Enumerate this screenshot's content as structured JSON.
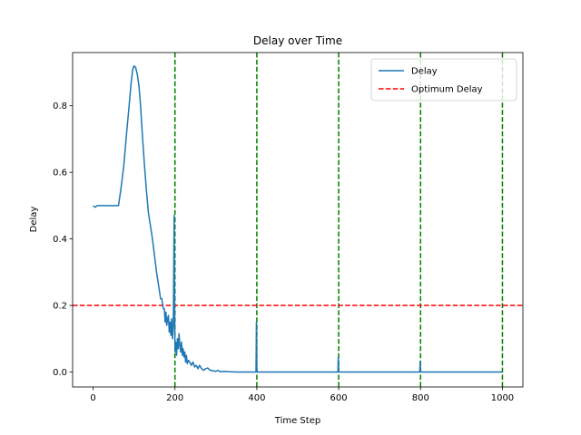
{
  "chart_data": {
    "type": "line",
    "title": "Delay over Time",
    "xlabel": "Time Step",
    "ylabel": "Delay",
    "xlim": [
      -50,
      1050
    ],
    "ylim": [
      -0.045,
      0.96
    ],
    "xticks": [
      0,
      200,
      400,
      600,
      800,
      1000
    ],
    "xtick_labels": [
      "0",
      "200",
      "400",
      "600",
      "800",
      "1000"
    ],
    "yticks": [
      0.0,
      0.2,
      0.4,
      0.6,
      0.8
    ],
    "ytick_labels": [
      "0.0",
      "0.2",
      "0.4",
      "0.6",
      "0.8"
    ],
    "grid": false,
    "legend": {
      "placement": "top-right",
      "entries": [
        {
          "label": "Delay",
          "color": "#1f77b4",
          "style": "solid"
        },
        {
          "label": "Optimum Delay",
          "color": "#ff0000",
          "style": "dashed"
        }
      ]
    },
    "series": [
      {
        "name": "Delay",
        "color": "#1f77b4",
        "x": [
          0,
          5,
          10,
          40,
          62,
          68,
          75,
          82,
          88,
          93,
          97,
          100,
          104,
          108,
          112,
          116,
          120,
          125,
          130,
          135,
          140,
          145,
          150,
          155,
          160,
          165,
          168,
          170,
          172,
          174,
          176,
          178,
          180,
          182,
          184,
          186,
          188,
          190,
          192,
          194,
          196,
          198,
          199,
          200,
          201,
          202,
          204,
          206,
          208,
          210,
          212,
          214,
          216,
          218,
          220,
          222,
          224,
          226,
          228,
          230,
          233,
          236,
          240,
          244,
          248,
          252,
          256,
          260,
          265,
          270,
          275,
          280,
          285,
          290,
          300,
          305,
          310,
          320,
          330,
          350,
          380,
          398,
          399,
          400,
          401,
          402,
          420,
          500,
          598,
          599,
          600,
          601,
          602,
          700,
          798,
          799,
          800,
          801,
          802,
          900,
          1000
        ],
        "values": [
          0.5,
          0.495,
          0.5,
          0.5,
          0.5,
          0.55,
          0.62,
          0.72,
          0.8,
          0.87,
          0.91,
          0.92,
          0.915,
          0.895,
          0.86,
          0.8,
          0.72,
          0.63,
          0.55,
          0.48,
          0.44,
          0.4,
          0.35,
          0.3,
          0.26,
          0.22,
          0.22,
          0.2,
          0.19,
          0.19,
          0.15,
          0.18,
          0.14,
          0.16,
          0.17,
          0.12,
          0.15,
          0.11,
          0.16,
          0.1,
          0.14,
          0.47,
          0.2,
          0.08,
          0.06,
          0.09,
          0.05,
          0.1,
          0.07,
          0.115,
          0.08,
          0.06,
          0.09,
          0.05,
          0.07,
          0.045,
          0.06,
          0.03,
          0.05,
          0.025,
          0.035,
          0.03,
          0.02,
          0.03,
          0.015,
          0.02,
          0.01,
          0.02,
          0.01,
          0.005,
          0.01,
          0.012,
          0.006,
          0.004,
          0.002,
          0.005,
          0.001,
          0.002,
          0.001,
          0.0,
          0.0,
          0.0,
          0.15,
          0.01,
          0.0,
          0.0,
          0.0,
          0.0,
          0.0,
          0.045,
          0.005,
          0.0,
          0.0,
          0.0,
          0.0,
          0.03,
          0.005,
          0.0,
          0.0,
          0.0,
          0.0
        ]
      }
    ],
    "hlines": [
      {
        "name": "Optimum Delay",
        "y": 0.2,
        "color": "#ff0000",
        "style": "dashed"
      }
    ],
    "vlines": [
      {
        "x": 200,
        "color": "#008000",
        "style": "dashed"
      },
      {
        "x": 400,
        "color": "#008000",
        "style": "dashed"
      },
      {
        "x": 600,
        "color": "#008000",
        "style": "dashed"
      },
      {
        "x": 800,
        "color": "#008000",
        "style": "dashed"
      },
      {
        "x": 1000,
        "color": "#008000",
        "style": "dashed"
      }
    ]
  }
}
